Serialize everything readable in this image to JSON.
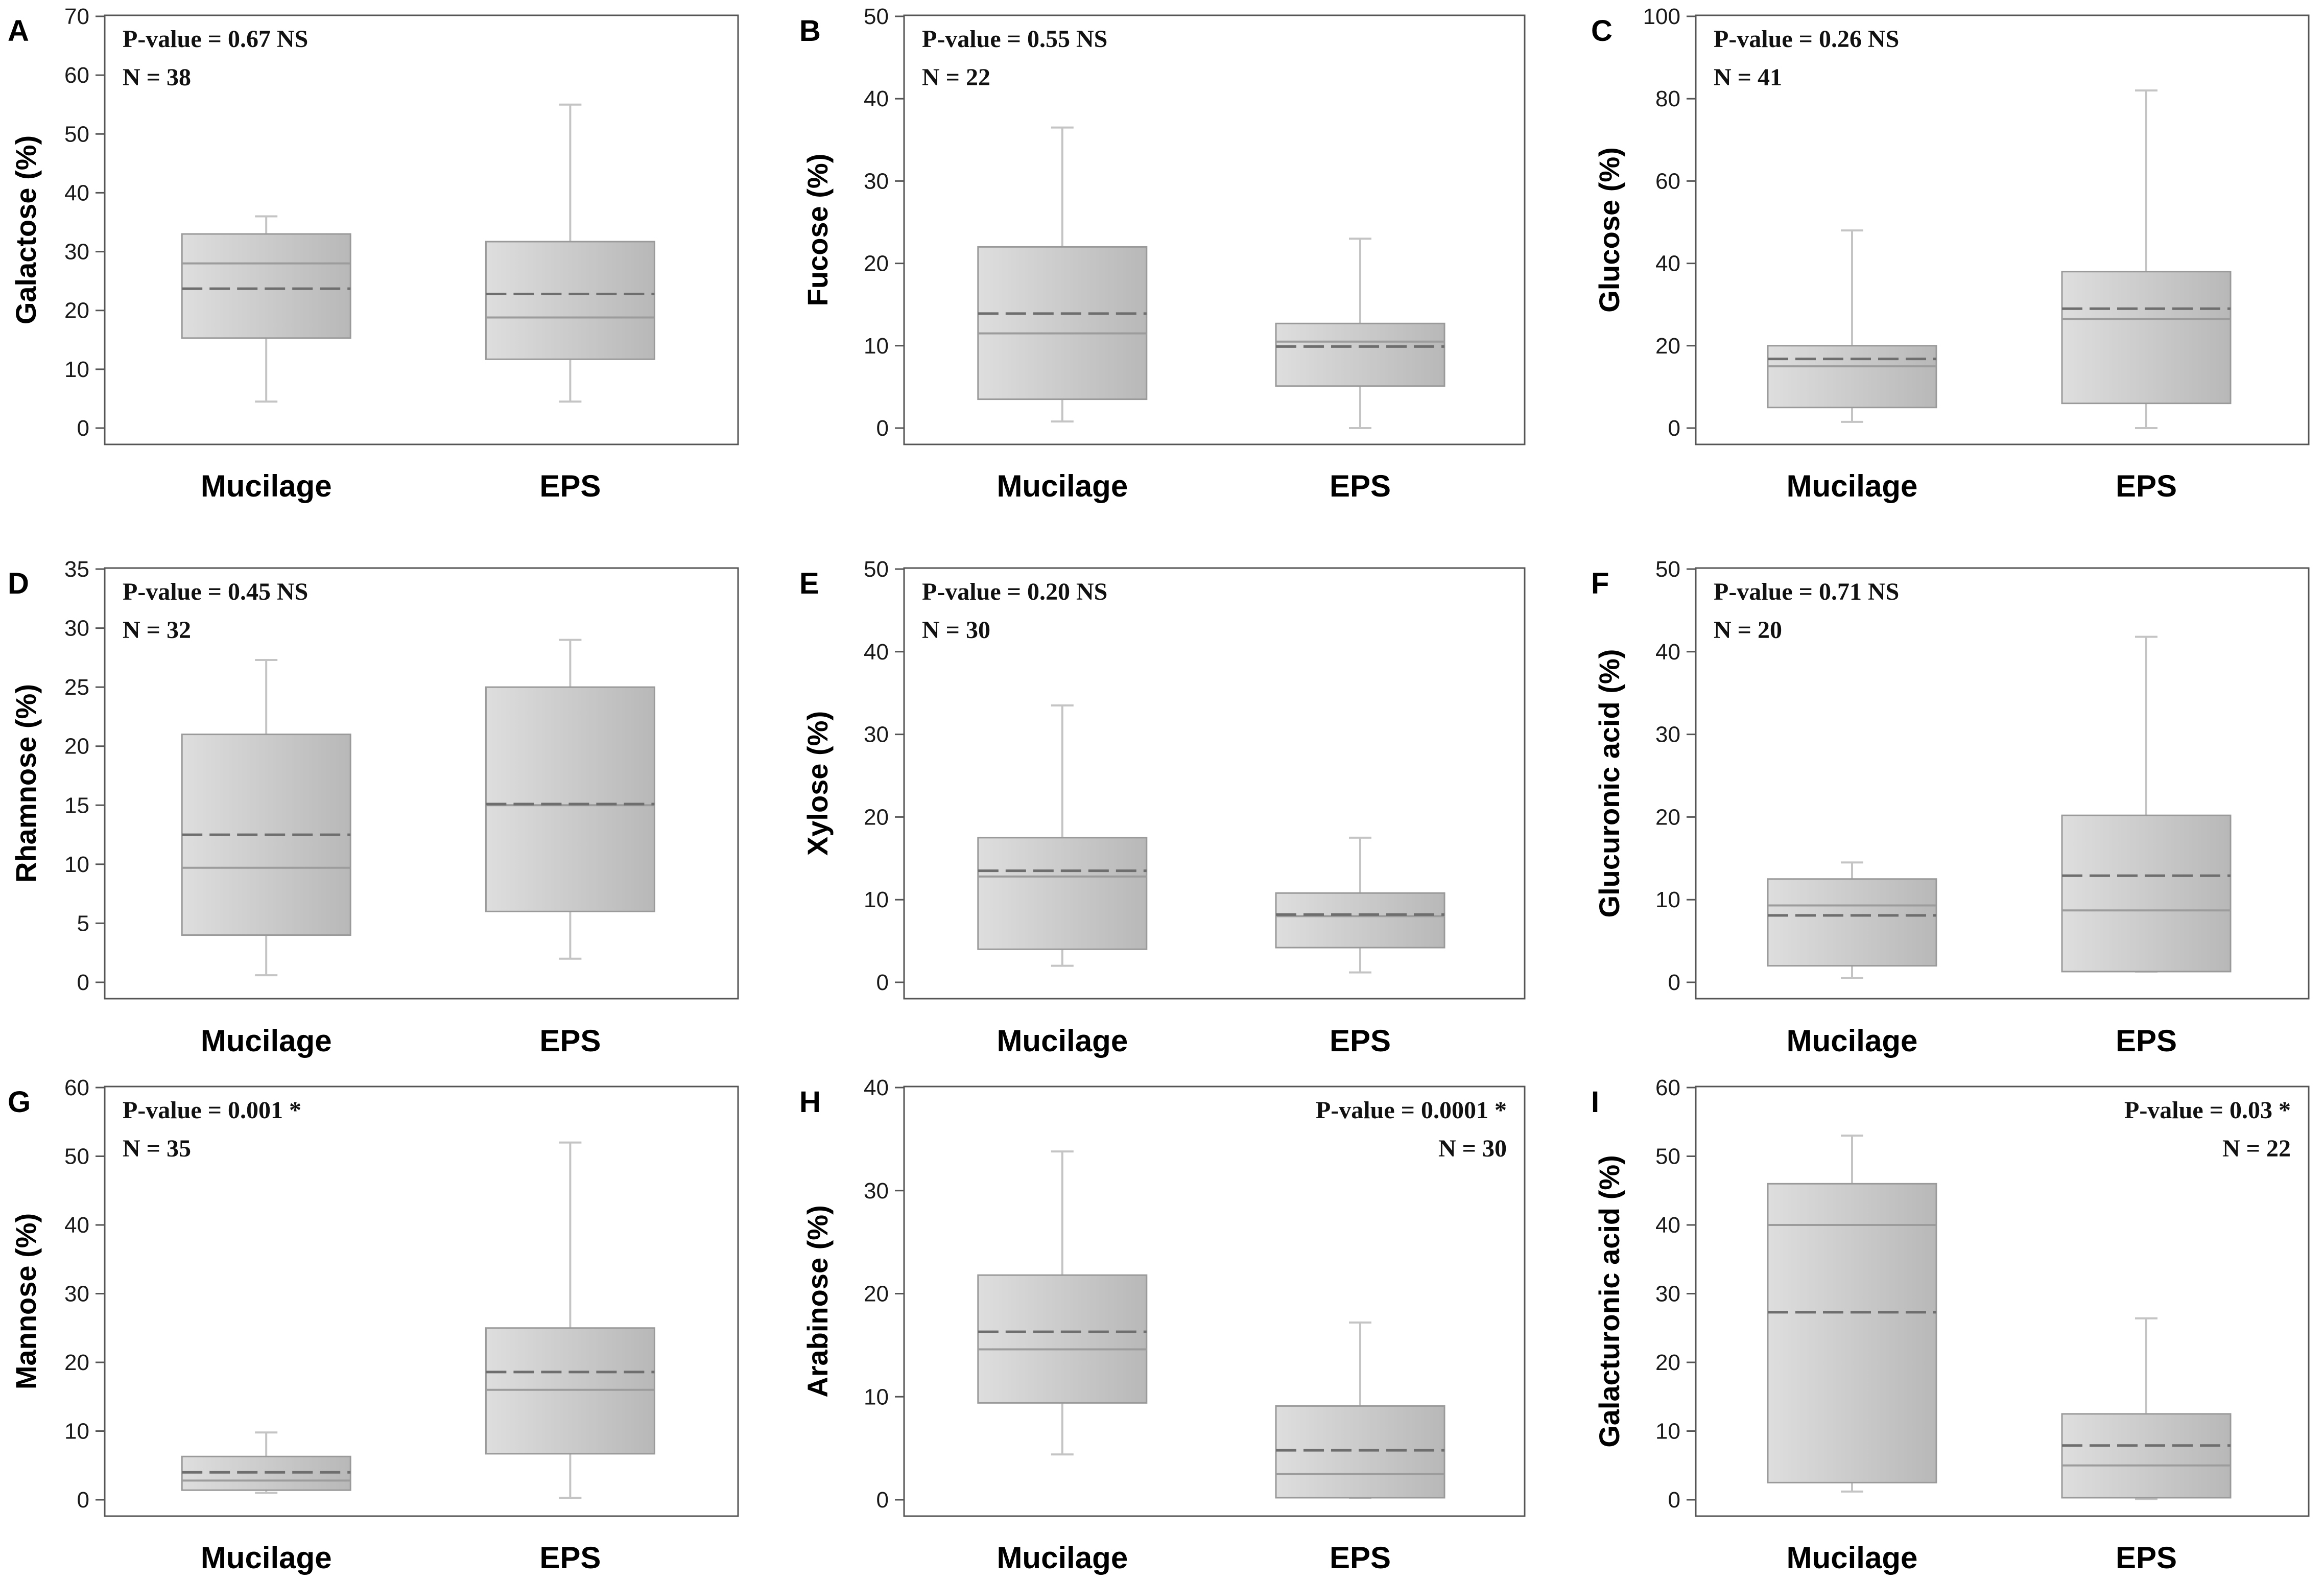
{
  "colors": {
    "box_light": "#dcdcdc",
    "box_dark": "#b9b9b9",
    "box_stroke": "#9a9a9a",
    "whisker": "#c4c4c4",
    "median": "#9c9c9c",
    "mean": "#6e6e6e",
    "frame": "#555555"
  },
  "chart_data": [
    {
      "type": "box",
      "panel": "A",
      "ylabel": "Galactose (%)",
      "ylim": [
        0,
        70
      ],
      "yticks": [
        0,
        10,
        20,
        30,
        40,
        50,
        60,
        70
      ],
      "categories": [
        "Mucilage",
        "EPS"
      ],
      "boxes": [
        {
          "min": 4.5,
          "q1": 15.3,
          "median": 28.0,
          "mean": 23.7,
          "q3": 33.0,
          "max": 36.0
        },
        {
          "min": 4.5,
          "q1": 11.7,
          "median": 18.8,
          "mean": 22.8,
          "q3": 31.7,
          "max": 55.0
        }
      ],
      "pvalue_text": "P-value  = 0.67 NS",
      "n_text": "N = 38",
      "stat_position": "top-left"
    },
    {
      "type": "box",
      "panel": "B",
      "ylabel": "Fucose (%)",
      "ylim": [
        0,
        50
      ],
      "yticks": [
        0,
        10,
        20,
        30,
        40,
        50
      ],
      "categories": [
        "Mucilage",
        "EPS"
      ],
      "boxes": [
        {
          "min": 0.8,
          "q1": 3.5,
          "median": 11.5,
          "mean": 13.9,
          "q3": 22.0,
          "max": 36.5
        },
        {
          "min": 0.0,
          "q1": 5.1,
          "median": 10.5,
          "mean": 9.9,
          "q3": 12.7,
          "max": 23.0
        }
      ],
      "pvalue_text": "P-value  = 0.55 NS",
      "n_text": "N = 22",
      "stat_position": "top-left"
    },
    {
      "type": "box",
      "panel": "C",
      "ylabel": "Glucose (%)",
      "ylim": [
        0,
        100
      ],
      "yticks": [
        0,
        20,
        40,
        60,
        80,
        100
      ],
      "categories": [
        "Mucilage",
        "EPS"
      ],
      "boxes": [
        {
          "min": 1.5,
          "q1": 5.0,
          "median": 15.0,
          "mean": 16.8,
          "q3": 20.0,
          "max": 48.0
        },
        {
          "min": 0.0,
          "q1": 6.0,
          "median": 26.5,
          "mean": 29.0,
          "q3": 38.0,
          "max": 82.0
        }
      ],
      "pvalue_text": "P-value  = 0.26 NS",
      "n_text": "N = 41",
      "stat_position": "top-left"
    },
    {
      "type": "box",
      "panel": "D",
      "ylabel": "Rhamnose (%)",
      "ylim": [
        0,
        35
      ],
      "yticks": [
        0,
        5,
        10,
        15,
        20,
        25,
        30,
        35
      ],
      "categories": [
        "Mucilage",
        "EPS"
      ],
      "boxes": [
        {
          "min": 0.6,
          "q1": 4.0,
          "median": 9.7,
          "mean": 12.5,
          "q3": 21.0,
          "max": 27.3
        },
        {
          "min": 2.0,
          "q1": 6.0,
          "median": 15.0,
          "mean": 15.1,
          "q3": 25.0,
          "max": 29.0
        }
      ],
      "pvalue_text": "P-value  = 0.45 NS",
      "n_text": "N = 32",
      "stat_position": "top-left"
    },
    {
      "type": "box",
      "panel": "E",
      "ylabel": "Xylose (%)",
      "ylim": [
        0,
        50
      ],
      "yticks": [
        0,
        10,
        20,
        30,
        40,
        50
      ],
      "categories": [
        "Mucilage",
        "EPS"
      ],
      "boxes": [
        {
          "min": 2.0,
          "q1": 4.0,
          "median": 12.8,
          "mean": 13.5,
          "q3": 17.5,
          "max": 33.5
        },
        {
          "min": 1.2,
          "q1": 4.2,
          "median": 8.0,
          "mean": 8.2,
          "q3": 10.8,
          "max": 17.5
        }
      ],
      "pvalue_text": "P-value  = 0.20 NS",
      "n_text": "N = 30",
      "stat_position": "top-left"
    },
    {
      "type": "box",
      "panel": "F",
      "ylabel": "Glucuronic acid (%)",
      "ylim": [
        0,
        50
      ],
      "yticks": [
        0,
        10,
        20,
        30,
        40,
        50
      ],
      "categories": [
        "Mucilage",
        "EPS"
      ],
      "boxes": [
        {
          "min": 0.5,
          "q1": 2.0,
          "median": 9.3,
          "mean": 8.1,
          "q3": 12.5,
          "max": 14.5
        },
        {
          "min": 1.3,
          "q1": 1.3,
          "median": 8.7,
          "mean": 12.9,
          "q3": 20.2,
          "max": 41.8
        }
      ],
      "pvalue_text": "P-value  = 0.71 NS",
      "n_text": "N = 20",
      "stat_position": "top-left"
    },
    {
      "type": "box",
      "panel": "G",
      "ylabel": "Mannose (%)",
      "ylim": [
        0,
        60
      ],
      "yticks": [
        0,
        10,
        20,
        30,
        40,
        50,
        60
      ],
      "categories": [
        "Mucilage",
        "EPS"
      ],
      "boxes": [
        {
          "min": 1.0,
          "q1": 1.4,
          "median": 2.8,
          "mean": 4.0,
          "q3": 6.3,
          "max": 9.8
        },
        {
          "min": 0.3,
          "q1": 6.7,
          "median": 16.0,
          "mean": 18.6,
          "q3": 25.0,
          "max": 52.0
        }
      ],
      "pvalue_text": "P-value  = 0.001 *",
      "n_text": "N = 35",
      "stat_position": "top-left"
    },
    {
      "type": "box",
      "panel": "H",
      "ylabel": "Arabinose (%)",
      "ylim": [
        0,
        40
      ],
      "yticks": [
        0,
        10,
        20,
        30,
        40
      ],
      "categories": [
        "Mucilage",
        "EPS"
      ],
      "boxes": [
        {
          "min": 4.4,
          "q1": 9.4,
          "median": 14.6,
          "mean": 16.3,
          "q3": 21.8,
          "max": 33.8
        },
        {
          "min": 0.2,
          "q1": 0.2,
          "median": 2.5,
          "mean": 4.8,
          "q3": 9.1,
          "max": 17.2
        }
      ],
      "pvalue_text": "P-value  = 0.0001 *",
      "n_text": "N = 30",
      "stat_position": "top-right"
    },
    {
      "type": "box",
      "panel": "I",
      "ylabel": "Galacturonic acid (%)",
      "ylim": [
        0,
        60
      ],
      "yticks": [
        0,
        10,
        20,
        30,
        40,
        50,
        60
      ],
      "categories": [
        "Mucilage",
        "EPS"
      ],
      "boxes": [
        {
          "min": 1.2,
          "q1": 2.5,
          "median": 40.0,
          "mean": 27.3,
          "q3": 46.0,
          "max": 53.0
        },
        {
          "min": 0.1,
          "q1": 0.3,
          "median": 5.0,
          "mean": 7.9,
          "q3": 12.5,
          "max": 26.4
        }
      ],
      "pvalue_text": "P-value  = 0.03 *",
      "n_text": "N = 22",
      "stat_position": "top-right"
    }
  ]
}
